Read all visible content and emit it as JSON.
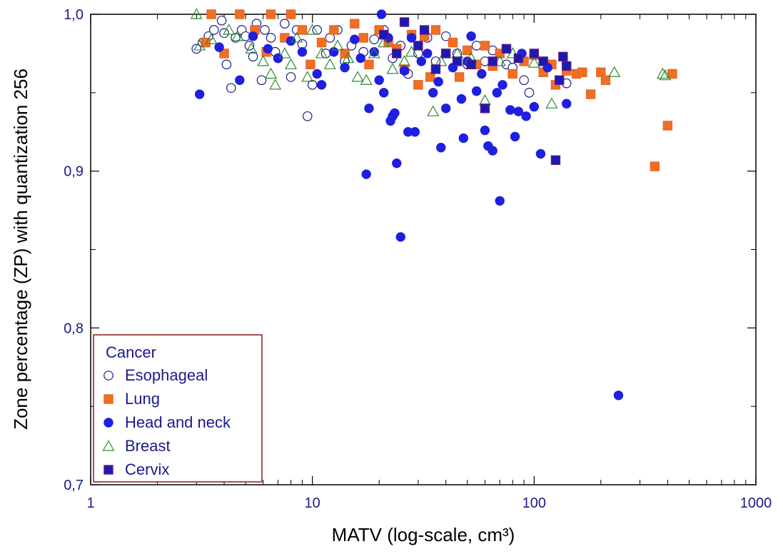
{
  "chart_data": {
    "type": "scatter",
    "xlabel": "MATV (log-scale, cm³)",
    "ylabel": "Zone percentage (ZP) with quantization 256",
    "x_scale": "log",
    "xlim": [
      1,
      1000
    ],
    "ylim": [
      0.7,
      1.0
    ],
    "x_ticks": [
      1,
      10,
      100,
      1000
    ],
    "x_tick_labels": [
      "1",
      "10",
      "100",
      "1000"
    ],
    "y_ticks": [
      0.7,
      0.8,
      0.9,
      1.0
    ],
    "y_tick_labels": [
      "0,7",
      "0,8",
      "0,9",
      "1,0"
    ],
    "grid": false,
    "legend": {
      "title": "Cancer",
      "position": "bottom-left",
      "border_color": "#8b1a1a"
    },
    "series": [
      {
        "name": "Esophageal",
        "marker": "circle-open",
        "color": "#1a1a8c",
        "fill": "#ffffff",
        "points": [
          [
            3.0,
            0.978
          ],
          [
            3.2,
            0.982
          ],
          [
            3.4,
            0.986
          ],
          [
            3.6,
            0.99
          ],
          [
            3.9,
            0.996
          ],
          [
            4.0,
            0.988
          ],
          [
            4.1,
            0.968
          ],
          [
            4.3,
            0.953
          ],
          [
            4.5,
            0.985
          ],
          [
            4.8,
            0.99
          ],
          [
            5.0,
            0.986
          ],
          [
            5.2,
            0.98
          ],
          [
            5.4,
            0.973
          ],
          [
            5.6,
            0.994
          ],
          [
            5.9,
            0.958
          ],
          [
            6.1,
            0.99
          ],
          [
            6.5,
            0.985
          ],
          [
            6.8,
            0.976
          ],
          [
            7.0,
            0.972
          ],
          [
            7.5,
            0.994
          ],
          [
            8.0,
            0.96
          ],
          [
            8.5,
            0.99
          ],
          [
            9.0,
            0.981
          ],
          [
            9.5,
            0.935
          ],
          [
            10.0,
            0.955
          ],
          [
            10.5,
            0.99
          ],
          [
            11.5,
            0.975
          ],
          [
            12.0,
            0.985
          ],
          [
            13.0,
            0.99
          ],
          [
            14.0,
            0.97
          ],
          [
            15.0,
            0.98
          ],
          [
            17.0,
            0.976
          ],
          [
            19.0,
            0.984
          ],
          [
            21.0,
            0.99
          ],
          [
            23.0,
            0.972
          ],
          [
            25.0,
            0.98
          ],
          [
            27.0,
            0.962
          ],
          [
            30.0,
            0.975
          ],
          [
            33.0,
            0.985
          ],
          [
            36.0,
            0.97
          ],
          [
            40.0,
            0.986
          ],
          [
            45.0,
            0.975
          ],
          [
            50.0,
            0.968
          ],
          [
            55.0,
            0.98
          ],
          [
            60.0,
            0.97
          ],
          [
            65.0,
            0.977
          ],
          [
            75.0,
            0.968
          ],
          [
            80.0,
            0.966
          ],
          [
            90.0,
            0.958
          ],
          [
            95.0,
            0.95
          ],
          [
            110.0,
            0.967
          ],
          [
            140.0,
            0.956
          ]
        ]
      },
      {
        "name": "Lung",
        "marker": "square",
        "color": "#e8632a",
        "fill": "#f07020",
        "points": [
          [
            3.3,
            0.982
          ],
          [
            3.5,
            1.0
          ],
          [
            4.0,
            0.975
          ],
          [
            4.7,
            1.0
          ],
          [
            5.5,
            0.99
          ],
          [
            6.2,
            0.976
          ],
          [
            6.5,
            1.0
          ],
          [
            7.5,
            0.985
          ],
          [
            8.0,
            1.0
          ],
          [
            9.0,
            0.99
          ],
          [
            9.8,
            0.968
          ],
          [
            11.0,
            0.982
          ],
          [
            12.5,
            0.99
          ],
          [
            14.0,
            0.975
          ],
          [
            15.5,
            0.994
          ],
          [
            17.0,
            0.985
          ],
          [
            18.0,
            0.968
          ],
          [
            20.0,
            0.99
          ],
          [
            22.0,
            0.982
          ],
          [
            24.0,
            0.978
          ],
          [
            26.0,
            0.965
          ],
          [
            28.0,
            0.987
          ],
          [
            30.0,
            0.955
          ],
          [
            32.0,
            0.986
          ],
          [
            34.0,
            0.96
          ],
          [
            36.0,
            0.99
          ],
          [
            40.0,
            0.975
          ],
          [
            43.0,
            0.982
          ],
          [
            46.0,
            0.96
          ],
          [
            50.0,
            0.977
          ],
          [
            55.0,
            0.968
          ],
          [
            60.0,
            0.98
          ],
          [
            65.0,
            0.967
          ],
          [
            70.0,
            0.975
          ],
          [
            80.0,
            0.962
          ],
          [
            90.0,
            0.97
          ],
          [
            100.0,
            0.974
          ],
          [
            110.0,
            0.963
          ],
          [
            120.0,
            0.968
          ],
          [
            125.0,
            0.955
          ],
          [
            140.0,
            0.964
          ],
          [
            155.0,
            0.962
          ],
          [
            165.0,
            0.963
          ],
          [
            180.0,
            0.949
          ],
          [
            200.0,
            0.963
          ],
          [
            210.0,
            0.958
          ],
          [
            350.0,
            0.903
          ],
          [
            400.0,
            0.929
          ],
          [
            420.0,
            0.962
          ]
        ]
      },
      {
        "name": "Head and neck",
        "marker": "circle",
        "color": "#1f1fe0",
        "fill": "#1f1fe0",
        "points": [
          [
            3.1,
            0.949
          ],
          [
            3.8,
            0.979
          ],
          [
            4.7,
            0.958
          ],
          [
            5.4,
            0.986
          ],
          [
            6.3,
            0.978
          ],
          [
            7.0,
            0.972
          ],
          [
            8.0,
            0.983
          ],
          [
            9.0,
            0.976
          ],
          [
            10.5,
            0.962
          ],
          [
            11.0,
            0.955
          ],
          [
            12.5,
            0.976
          ],
          [
            14.0,
            0.966
          ],
          [
            15.5,
            0.984
          ],
          [
            16.5,
            0.972
          ],
          [
            17.5,
            0.898
          ],
          [
            18.0,
            0.94
          ],
          [
            19.0,
            0.976
          ],
          [
            20.0,
            0.958
          ],
          [
            20.5,
            1.0
          ],
          [
            21.0,
            0.95
          ],
          [
            22.0,
            0.985
          ],
          [
            22.5,
            0.932
          ],
          [
            23.0,
            0.935
          ],
          [
            23.5,
            0.937
          ],
          [
            24.0,
            0.905
          ],
          [
            25.0,
            0.858
          ],
          [
            26.0,
            0.964
          ],
          [
            27.0,
            0.925
          ],
          [
            28.0,
            0.985
          ],
          [
            29.0,
            0.925
          ],
          [
            31.0,
            0.97
          ],
          [
            33.0,
            0.975
          ],
          [
            35.0,
            0.95
          ],
          [
            37.0,
            0.957
          ],
          [
            38.0,
            0.915
          ],
          [
            40.0,
            0.94
          ],
          [
            43.0,
            0.966
          ],
          [
            47.0,
            0.946
          ],
          [
            48.0,
            0.921
          ],
          [
            50.0,
            0.97
          ],
          [
            52.0,
            0.986
          ],
          [
            55.0,
            0.951
          ],
          [
            58.0,
            0.962
          ],
          [
            60.0,
            0.926
          ],
          [
            62.0,
            0.916
          ],
          [
            65.0,
            0.913
          ],
          [
            68.0,
            0.95
          ],
          [
            70.0,
            0.881
          ],
          [
            72.0,
            0.955
          ],
          [
            78.0,
            0.939
          ],
          [
            82.0,
            0.922
          ],
          [
            85.0,
            0.938
          ],
          [
            88.0,
            0.975
          ],
          [
            92.0,
            0.935
          ],
          [
            100.0,
            0.941
          ],
          [
            107.0,
            0.911
          ],
          [
            115.0,
            0.966
          ],
          [
            140.0,
            0.943
          ],
          [
            240.0,
            0.757
          ]
        ]
      },
      {
        "name": "Breast",
        "marker": "triangle-open",
        "color": "#2e8b2e",
        "fill": "#ffffff",
        "points": [
          [
            3.0,
            1.0
          ],
          [
            3.1,
            0.98
          ],
          [
            3.5,
            0.984
          ],
          [
            4.2,
            0.99
          ],
          [
            4.6,
            0.986
          ],
          [
            5.3,
            0.978
          ],
          [
            6.0,
            0.97
          ],
          [
            6.5,
            0.962
          ],
          [
            6.8,
            0.955
          ],
          [
            7.5,
            0.975
          ],
          [
            8.0,
            0.968
          ],
          [
            8.5,
            0.985
          ],
          [
            9.5,
            0.96
          ],
          [
            10.0,
            0.99
          ],
          [
            11.0,
            0.975
          ],
          [
            12.0,
            0.968
          ],
          [
            13.0,
            0.98
          ],
          [
            14.5,
            0.972
          ],
          [
            16.0,
            0.96
          ],
          [
            17.5,
            0.958
          ],
          [
            19.0,
            0.975
          ],
          [
            21.0,
            0.982
          ],
          [
            23.0,
            0.965
          ],
          [
            26.0,
            0.97
          ],
          [
            28.0,
            0.976
          ],
          [
            35.0,
            0.938
          ],
          [
            38.0,
            0.97
          ],
          [
            45.0,
            0.975
          ],
          [
            52.0,
            0.972
          ],
          [
            60.0,
            0.945
          ],
          [
            70.0,
            0.97
          ],
          [
            80.0,
            0.975
          ],
          [
            100.0,
            0.969
          ],
          [
            120.0,
            0.943
          ],
          [
            230.0,
            0.963
          ],
          [
            380.0,
            0.962
          ],
          [
            390.0,
            0.961
          ]
        ]
      },
      {
        "name": "Cervix",
        "marker": "square",
        "color": "#5a1a8c",
        "fill": "#1a1ab0",
        "points": [
          [
            21.0,
            0.987
          ],
          [
            24.0,
            0.975
          ],
          [
            26.0,
            0.995
          ],
          [
            30.0,
            0.98
          ],
          [
            32.0,
            0.99
          ],
          [
            36.0,
            0.965
          ],
          [
            40.0,
            0.975
          ],
          [
            45.0,
            0.97
          ],
          [
            52.0,
            0.968
          ],
          [
            60.0,
            0.94
          ],
          [
            65.0,
            0.97
          ],
          [
            75.0,
            0.978
          ],
          [
            85.0,
            0.972
          ],
          [
            100.0,
            0.975
          ],
          [
            110.0,
            0.97
          ],
          [
            125.0,
            0.907
          ],
          [
            130.0,
            0.958
          ],
          [
            135.0,
            0.973
          ],
          [
            140.0,
            0.967
          ]
        ]
      }
    ]
  }
}
